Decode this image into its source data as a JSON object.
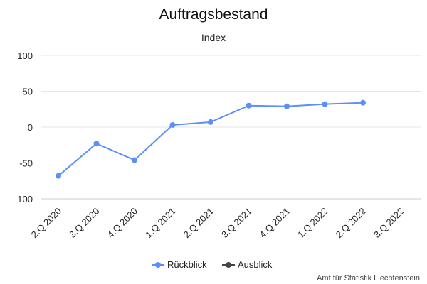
{
  "chart_data": {
    "type": "line",
    "title": "Auftragsbestand",
    "subtitle": "Index",
    "categories": [
      "2.Q 2020",
      "3.Q 2020",
      "4.Q 2020",
      "1.Q 2021",
      "2.Q 2021",
      "3.Q 2021",
      "4.Q 2021",
      "1.Q 2022",
      "2.Q 2022",
      "3.Q 2022"
    ],
    "yticks": [
      "100",
      "50",
      "0",
      "-50",
      "-100"
    ],
    "ylim": [
      -100,
      100
    ],
    "grid": true,
    "legend_position": "bottom",
    "series": [
      {
        "name": "Rückblick",
        "color": "#5b8ff9",
        "values": [
          -68,
          -23,
          -46,
          3,
          7,
          30,
          29,
          32,
          34,
          null
        ]
      },
      {
        "name": "Ausblick",
        "color": "#434348",
        "values": [
          null,
          null,
          null,
          null,
          null,
          null,
          null,
          null,
          null,
          null
        ]
      }
    ]
  },
  "credit": "Amt für Statistik Liechtenstein"
}
